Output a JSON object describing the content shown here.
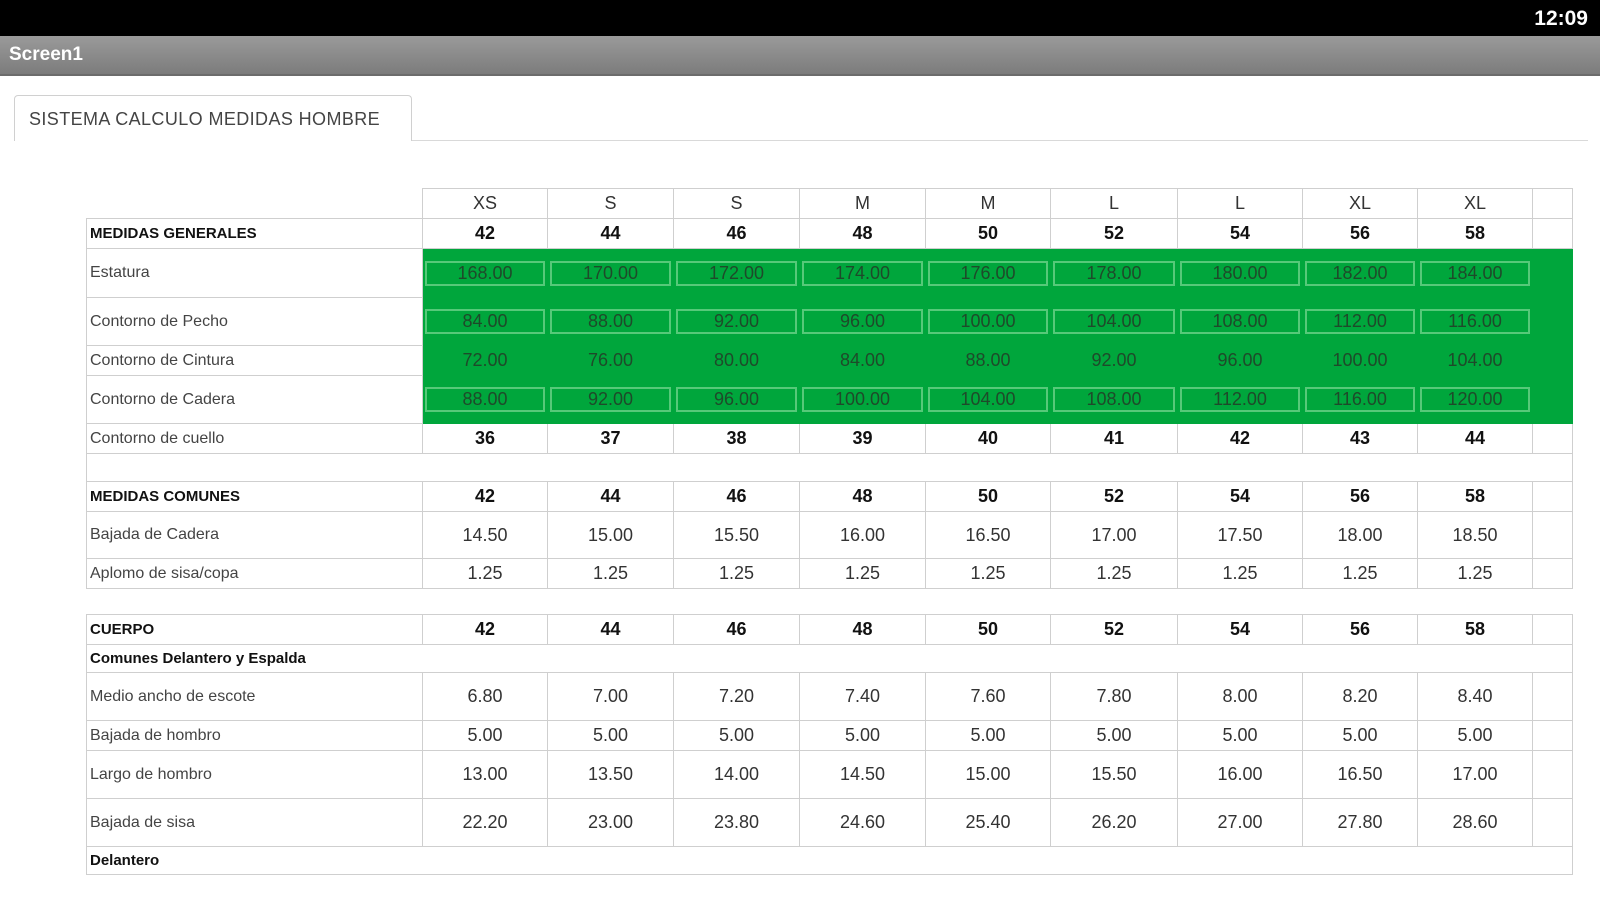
{
  "status": {
    "time": "12:09"
  },
  "app": {
    "title": "Screen1"
  },
  "tab": {
    "label": "SISTEMA CALCULO MEDIDAS HOMBRE"
  },
  "table": {
    "size_labels": [
      "XS",
      "S",
      "S",
      "M",
      "M",
      "L",
      "L",
      "XL",
      "XL"
    ],
    "sections": [
      {
        "header": "MEDIDAS GENERALES",
        "sizes": [
          "42",
          "44",
          "46",
          "48",
          "50",
          "52",
          "54",
          "56",
          "58"
        ],
        "rows": [
          {
            "label": "Estatura",
            "values": [
              "168.00",
              "170.00",
              "172.00",
              "174.00",
              "176.00",
              "178.00",
              "180.00",
              "182.00",
              "184.00"
            ]
          },
          {
            "label": "Contorno de Pecho",
            "values": [
              "84.00",
              "88.00",
              "92.00",
              "96.00",
              "100.00",
              "104.00",
              "108.00",
              "112.00",
              "116.00"
            ]
          },
          {
            "label": "Contorno de Cintura",
            "values": [
              "72.00",
              "76.00",
              "80.00",
              "84.00",
              "88.00",
              "92.00",
              "96.00",
              "100.00",
              "104.00"
            ]
          },
          {
            "label": "Contorno de Cadera",
            "values": [
              "88.00",
              "92.00",
              "96.00",
              "100.00",
              "104.00",
              "108.00",
              "112.00",
              "116.00",
              "120.00"
            ]
          },
          {
            "label": "Contorno de cuello",
            "values": [
              "36",
              "37",
              "38",
              "39",
              "40",
              "41",
              "42",
              "43",
              "44"
            ]
          }
        ]
      },
      {
        "header": "MEDIDAS COMUNES",
        "sizes": [
          "42",
          "44",
          "46",
          "48",
          "50",
          "52",
          "54",
          "56",
          "58"
        ],
        "rows": [
          {
            "label": "Bajada de Cadera",
            "values": [
              "14.50",
              "15.00",
              "15.50",
              "16.00",
              "16.50",
              "17.00",
              "17.50",
              "18.00",
              "18.50"
            ]
          },
          {
            "label": "Aplomo de sisa/copa",
            "values": [
              "1.25",
              "1.25",
              "1.25",
              "1.25",
              "1.25",
              "1.25",
              "1.25",
              "1.25",
              "1.25"
            ]
          }
        ]
      },
      {
        "header": "CUERPO",
        "sizes": [
          "42",
          "44",
          "46",
          "48",
          "50",
          "52",
          "54",
          "56",
          "58"
        ],
        "subheader": "Comunes Delantero y Espalda",
        "rows": [
          {
            "label": "Medio ancho de escote",
            "values": [
              "6.80",
              "7.00",
              "7.20",
              "7.40",
              "7.60",
              "7.80",
              "8.00",
              "8.20",
              "8.40"
            ]
          },
          {
            "label": "Bajada de hombro",
            "values": [
              "5.00",
              "5.00",
              "5.00",
              "5.00",
              "5.00",
              "5.00",
              "5.00",
              "5.00",
              "5.00"
            ]
          },
          {
            "label": "Largo de hombro",
            "values": [
              "13.00",
              "13.50",
              "14.00",
              "14.50",
              "15.00",
              "15.50",
              "16.00",
              "16.50",
              "17.00"
            ]
          },
          {
            "label": "Bajada de sisa",
            "values": [
              "22.20",
              "23.00",
              "23.80",
              "24.60",
              "25.40",
              "26.20",
              "27.00",
              "27.80",
              "28.60"
            ]
          }
        ],
        "footer_subheader": "Delantero"
      }
    ]
  }
}
